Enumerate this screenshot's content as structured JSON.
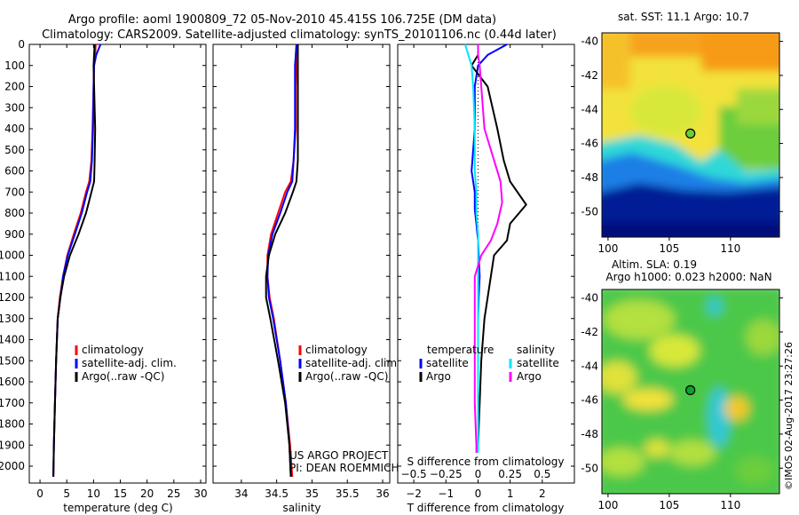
{
  "title": {
    "line1": "Argo profile: aoml 1900809_72 05-Nov-2010 45.415S 106.725E (DM data)",
    "line2": "Climatology: CARS2009. Satellite-adjusted climatology: synTS_20101106.nc (0.44d later)"
  },
  "colors": {
    "climatology": "#ff0000",
    "satellite": "#0000ff",
    "argo": "#000000",
    "sal_satellite": "#00e5ff",
    "sal_argo": "#ff00ff"
  },
  "chart_data": [
    {
      "type": "line",
      "id": "temperature",
      "xlabel": "temperature (deg C)",
      "ylabel": "",
      "xlim": [
        -2,
        31
      ],
      "ylim": [
        2080,
        0
      ],
      "xticks": [
        0,
        5,
        10,
        15,
        20,
        25,
        30
      ],
      "yticks": [
        0,
        100,
        200,
        300,
        400,
        500,
        600,
        700,
        800,
        900,
        1000,
        1100,
        1200,
        1300,
        1400,
        1500,
        1600,
        1700,
        1800,
        1900,
        2000
      ],
      "legend": [
        "climatology",
        "satellite-adj. clim.",
        "Argo(..raw -QC)"
      ],
      "series": [
        {
          "name": "climatology",
          "color": "#ff0000",
          "x": [
            10.4,
            10.3,
            10.1,
            10.0,
            9.8,
            9.6,
            9.2,
            8.6,
            7.6,
            6.3,
            5.1,
            4.3,
            3.7,
            3.3,
            3.0,
            2.8,
            2.6,
            2.5
          ],
          "y": [
            0,
            50,
            100,
            200,
            400,
            550,
            650,
            700,
            800,
            900,
            1000,
            1100,
            1200,
            1300,
            1500,
            1700,
            1900,
            2050
          ]
        },
        {
          "name": "satellite-adj. clim.",
          "color": "#0000ff",
          "x": [
            11.3,
            10.5,
            10.1,
            10.0,
            9.9,
            9.7,
            9.4,
            8.8,
            7.8,
            6.5,
            5.2,
            4.3,
            3.8,
            3.3,
            3.0,
            2.8,
            2.6,
            2.5
          ],
          "y": [
            0,
            50,
            100,
            200,
            400,
            550,
            650,
            700,
            800,
            900,
            1000,
            1100,
            1200,
            1300,
            1500,
            1700,
            1900,
            2050
          ]
        },
        {
          "name": "Argo(..raw -QC)",
          "color": "#000000",
          "x": [
            10.2,
            10.1,
            10.0,
            10.1,
            10.3,
            10.2,
            10.1,
            9.6,
            8.6,
            7.2,
            5.6,
            4.5,
            3.8,
            3.3,
            3.0,
            2.8,
            2.6,
            2.5
          ],
          "y": [
            0,
            50,
            100,
            200,
            400,
            550,
            650,
            700,
            800,
            900,
            1000,
            1100,
            1200,
            1300,
            1500,
            1700,
            1900,
            2050
          ]
        }
      ]
    },
    {
      "type": "line",
      "id": "salinity",
      "xlabel": "salinity",
      "ylabel": "",
      "xlim": [
        33.6,
        36.1
      ],
      "ylim": [
        2080,
        0
      ],
      "xticks": [
        34,
        34.5,
        35,
        35.5,
        36
      ],
      "legend": [
        "climatology",
        "satellite-adj. clim.",
        "Argo(..raw -QC)"
      ],
      "annotation": [
        "US ARGO PROJECT",
        "PI: DEAN ROEMMICH"
      ],
      "series": [
        {
          "name": "climatology",
          "color": "#ff0000",
          "x": [
            34.8,
            34.79,
            34.78,
            34.77,
            34.77,
            34.74,
            34.7,
            34.62,
            34.52,
            34.42,
            34.37,
            34.37,
            34.4,
            34.46,
            34.55,
            34.63,
            34.69,
            34.72
          ],
          "y": [
            0,
            50,
            100,
            200,
            400,
            550,
            650,
            700,
            800,
            900,
            1000,
            1100,
            1200,
            1300,
            1500,
            1700,
            1900,
            2050
          ]
        },
        {
          "name": "satellite-adj. clim.",
          "color": "#0000ff",
          "x": [
            34.78,
            34.77,
            34.76,
            34.76,
            34.76,
            34.74,
            34.72,
            34.65,
            34.55,
            34.44,
            34.38,
            34.37,
            34.39,
            34.45,
            34.55,
            34.63,
            34.68,
            34.7
          ],
          "y": [
            0,
            50,
            100,
            200,
            400,
            550,
            650,
            700,
            800,
            900,
            1000,
            1100,
            1200,
            1300,
            1500,
            1700,
            1900,
            2050
          ]
        },
        {
          "name": "Argo(..raw -QC)",
          "color": "#000000",
          "x": [
            34.8,
            34.8,
            34.8,
            34.8,
            34.8,
            34.8,
            34.78,
            34.73,
            34.62,
            34.48,
            34.39,
            34.35,
            34.35,
            34.41,
            34.52,
            34.62,
            34.68,
            34.7
          ],
          "y": [
            0,
            50,
            100,
            200,
            400,
            550,
            650,
            700,
            800,
            900,
            1000,
            1100,
            1200,
            1300,
            1500,
            1700,
            1900,
            2050
          ]
        }
      ]
    },
    {
      "type": "line",
      "id": "difference",
      "xlabel": "T difference from climatology",
      "xlabel_top": "S difference from climatology",
      "ylabel": "",
      "xlim": [
        -2.5,
        3.0
      ],
      "ylim": [
        2080,
        0
      ],
      "xticks_bottom": [
        -2,
        -1,
        0,
        1,
        2
      ],
      "xtick_labels_bottom": [
        "−2",
        "−1",
        "0",
        "1",
        "2"
      ],
      "xticks_top_pos": [
        -2.0,
        -1.0,
        0.0,
        1.0,
        2.0
      ],
      "xtick_labels_top": [
        "−0.5",
        "−0.25",
        "0",
        "0.25",
        "0.5"
      ],
      "legend_temperature": {
        "heading": "temperature",
        "items": [
          "satellite",
          "Argo"
        ]
      },
      "legend_salinity": {
        "heading": "salinity",
        "items": [
          "satellite",
          "Argo"
        ]
      },
      "series": [
        {
          "name": "T satellite",
          "color": "#0000ff",
          "x": [
            0.9,
            0.3,
            0.0,
            -0.1,
            -0.1,
            -0.2,
            -0.1,
            -0.1,
            -0.05,
            0.0,
            0.02,
            0.05,
            0.02,
            0.0,
            0.0,
            0.0,
            0.0,
            0.0
          ],
          "y": [
            0,
            50,
            100,
            200,
            400,
            600,
            700,
            780,
            850,
            930,
            1000,
            1100,
            1200,
            1300,
            1500,
            1700,
            1900,
            2050
          ]
        },
        {
          "name": "T Argo",
          "color": "#000000",
          "x": [
            0.0,
            0.0,
            -0.2,
            0.3,
            0.6,
            0.8,
            1.0,
            1.5,
            1.0,
            0.9,
            0.5,
            0.4,
            0.3,
            0.2,
            0.1,
            0.05,
            0.0,
            0.0
          ],
          "y": [
            0,
            50,
            100,
            200,
            400,
            550,
            650,
            760,
            850,
            930,
            1000,
            1100,
            1200,
            1300,
            1500,
            1700,
            1900,
            2050
          ]
        },
        {
          "name": "S satellite",
          "color": "#00e5ff",
          "x": [
            -0.4,
            -0.3,
            -0.2,
            -0.15,
            -0.1,
            -0.1,
            -0.05,
            -0.05,
            0.0,
            0.0,
            0.0,
            0.0,
            0.0,
            0.0,
            0.0,
            0.0,
            0.0,
            0.0
          ],
          "y": [
            0,
            50,
            100,
            200,
            400,
            600,
            700,
            800,
            900,
            1000,
            1100,
            1200,
            1300,
            1400,
            1500,
            1700,
            1900,
            2050
          ]
        },
        {
          "name": "S Argo",
          "color": "#ff00ff",
          "x": [
            0.0,
            0.0,
            0.05,
            0.1,
            0.2,
            0.5,
            0.7,
            0.75,
            0.6,
            0.4,
            0.1,
            -0.1,
            -0.1,
            -0.1,
            -0.1,
            -0.1,
            -0.05,
            -0.05
          ],
          "y": [
            0,
            50,
            100,
            200,
            400,
            550,
            650,
            750,
            850,
            930,
            1000,
            1100,
            1200,
            1300,
            1500,
            1700,
            1900,
            2050
          ]
        }
      ]
    },
    {
      "type": "heatmap",
      "id": "sst-map",
      "title": "sat. SST: 11.1  Argo: 10.7",
      "xlim": [
        99.5,
        114
      ],
      "ylim": [
        -51.5,
        -39.5
      ],
      "xticks": [
        100,
        105,
        110
      ],
      "yticks": [
        -40,
        -42,
        -44,
        -46,
        -48,
        -50
      ],
      "marker": {
        "lon": 106.725,
        "lat": -45.415
      }
    },
    {
      "type": "heatmap",
      "id": "sla-map",
      "title": "Altim. SLA: 0.19",
      "subtitle": "Argo h1000: 0.023 h2000: NaN",
      "xlim": [
        99.5,
        114
      ],
      "ylim": [
        -51.5,
        -39.5
      ],
      "xticks": [
        100,
        105,
        110
      ],
      "yticks": [
        -40,
        -42,
        -44,
        -46,
        -48,
        -50
      ],
      "marker": {
        "lon": 106.725,
        "lat": -45.415
      }
    }
  ],
  "footer_stamp": "©IMOS 02-Aug-2017 23:27:26"
}
